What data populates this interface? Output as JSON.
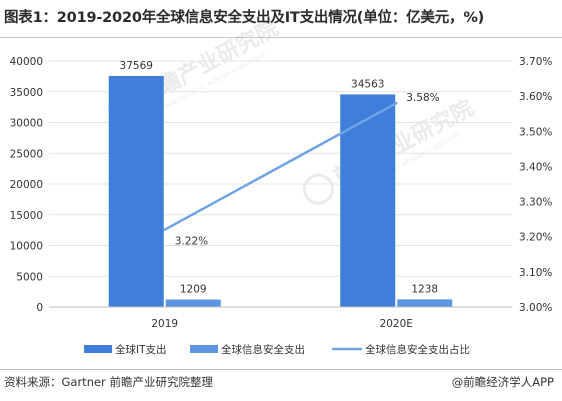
{
  "title": "图表1：2019-2020年全球信息安全支出及IT支出情况(单位：亿美元，%)",
  "source": "资料来源：Gartner 前瞻产业研究院整理",
  "brand": "@前瞻经济学人APP",
  "watermark": {
    "name": "前瞻产业研究院",
    "sub": "QIANZHAN INDUSTRY RESEARCH INSTITUTE"
  },
  "colors": {
    "it_bar": "#3f7fd9",
    "security_bar": "#5b95e3",
    "share_line": "#6fa3e6",
    "grid": "#e4e4e4",
    "axis_text": "#333333"
  },
  "chart_data": {
    "type": "bar",
    "categories": [
      "2019",
      "2020E"
    ],
    "series": [
      {
        "name": "全球IT支出",
        "kind": "bar",
        "axis": "left",
        "values": [
          37569,
          34563
        ],
        "labels": [
          "37569",
          "34563"
        ]
      },
      {
        "name": "全球信息安全支出",
        "kind": "bar",
        "axis": "left",
        "values": [
          1209,
          1238
        ],
        "labels": [
          "1209",
          "1238"
        ]
      },
      {
        "name": "全球信息安全支出占比",
        "kind": "line",
        "axis": "right",
        "values": [
          3.22,
          3.58
        ],
        "labels": [
          "3.22%",
          "3.58%"
        ]
      }
    ],
    "y_left": {
      "min": 0,
      "max": 40000,
      "step": 5000,
      "ticks": [
        "0",
        "5000",
        "10000",
        "15000",
        "20000",
        "25000",
        "30000",
        "35000",
        "40000"
      ]
    },
    "y_right": {
      "min": 3.0,
      "max": 3.7,
      "step": 0.1,
      "ticks": [
        "3.00%",
        "3.10%",
        "3.20%",
        "3.30%",
        "3.40%",
        "3.50%",
        "3.60%",
        "3.70%"
      ]
    },
    "grid": true,
    "legend_position": "bottom"
  }
}
